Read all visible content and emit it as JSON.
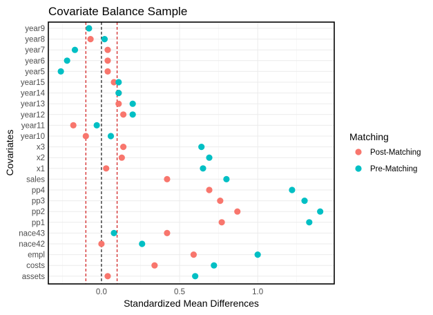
{
  "chart_data": {
    "type": "scatter",
    "title": "Covariate Balance Sample",
    "xlabel": "Standardized Mean Differences",
    "ylabel": "Covariates",
    "xlim": [
      -0.34,
      1.49
    ],
    "x_ticks": [
      0.0,
      0.5,
      1.0
    ],
    "x_tick_labels": [
      "0.0",
      "0.5",
      "1.0"
    ],
    "grid": true,
    "categories": [
      "year9",
      "year8",
      "year7",
      "year6",
      "year5",
      "year15",
      "year14",
      "year13",
      "year12",
      "year11",
      "year10",
      "x3",
      "x2",
      "x1",
      "sales",
      "pp4",
      "pp3",
      "pp2",
      "pp1",
      "nace43",
      "nace42",
      "empl",
      "costs",
      "assets"
    ],
    "reference_lines": [
      {
        "x": -0.1,
        "color": "#cc0000",
        "style": "dashed"
      },
      {
        "x": 0.0,
        "color": "#000000",
        "style": "dashed"
      },
      {
        "x": 0.1,
        "color": "#cc0000",
        "style": "dashed"
      }
    ],
    "legend": {
      "title": "Matching",
      "position": "right"
    },
    "series": [
      {
        "name": "Post-Matching",
        "color": "#F8766D",
        "values": [
          -0.08,
          -0.07,
          0.04,
          0.04,
          0.04,
          0.08,
          0.11,
          0.11,
          0.14,
          -0.18,
          -0.1,
          0.14,
          0.13,
          0.03,
          0.42,
          0.69,
          0.76,
          0.87,
          0.77,
          0.42,
          0.0,
          0.59,
          0.34,
          0.04
        ]
      },
      {
        "name": "Pre-Matching",
        "color": "#00BFC4",
        "values": [
          -0.08,
          0.02,
          -0.17,
          -0.22,
          -0.26,
          0.11,
          0.11,
          0.2,
          0.2,
          -0.03,
          0.06,
          0.64,
          0.69,
          0.65,
          0.8,
          1.22,
          1.3,
          1.4,
          1.33,
          0.08,
          0.26,
          1.0,
          0.72,
          0.6
        ]
      }
    ]
  }
}
